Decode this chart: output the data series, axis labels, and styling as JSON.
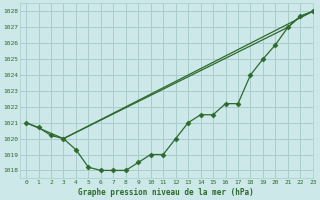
{
  "background_color": "#cce8e8",
  "grid_color": "#aacccc",
  "line_color": "#2d6a2d",
  "title": "Graphe pression niveau de la mer (hPa)",
  "xlim": [
    -0.5,
    23
  ],
  "ylim": [
    1017.5,
    1028.5
  ],
  "yticks": [
    1018,
    1019,
    1020,
    1021,
    1022,
    1023,
    1024,
    1025,
    1026,
    1027,
    1028
  ],
  "xticks": [
    0,
    1,
    2,
    3,
    4,
    5,
    6,
    7,
    8,
    9,
    10,
    11,
    12,
    13,
    14,
    15,
    16,
    17,
    18,
    19,
    20,
    21,
    22,
    23
  ],
  "line1_x": [
    0,
    1,
    2,
    3,
    4,
    5,
    6,
    7,
    8,
    9,
    10,
    11,
    12,
    13,
    14,
    15,
    16,
    17,
    18,
    19,
    20,
    21,
    22,
    23
  ],
  "line1_y": [
    1021.0,
    1020.7,
    1020.2,
    1020.0,
    1019.3,
    1018.2,
    1018.0,
    1018.0,
    1018.0,
    1018.5,
    1019.0,
    1019.0,
    1020.0,
    1021.0,
    1021.5,
    1021.5,
    1022.2,
    1022.2,
    1024.0,
    1025.0,
    1025.9,
    1027.0,
    1027.7,
    1028.0
  ],
  "line2_x": [
    0,
    3,
    23
  ],
  "line2_y": [
    1021.0,
    1020.0,
    1028.0
  ],
  "line3_x": [
    3,
    21,
    22,
    23
  ],
  "line3_y": [
    1020.0,
    1027.0,
    1027.7,
    1028.0
  ]
}
